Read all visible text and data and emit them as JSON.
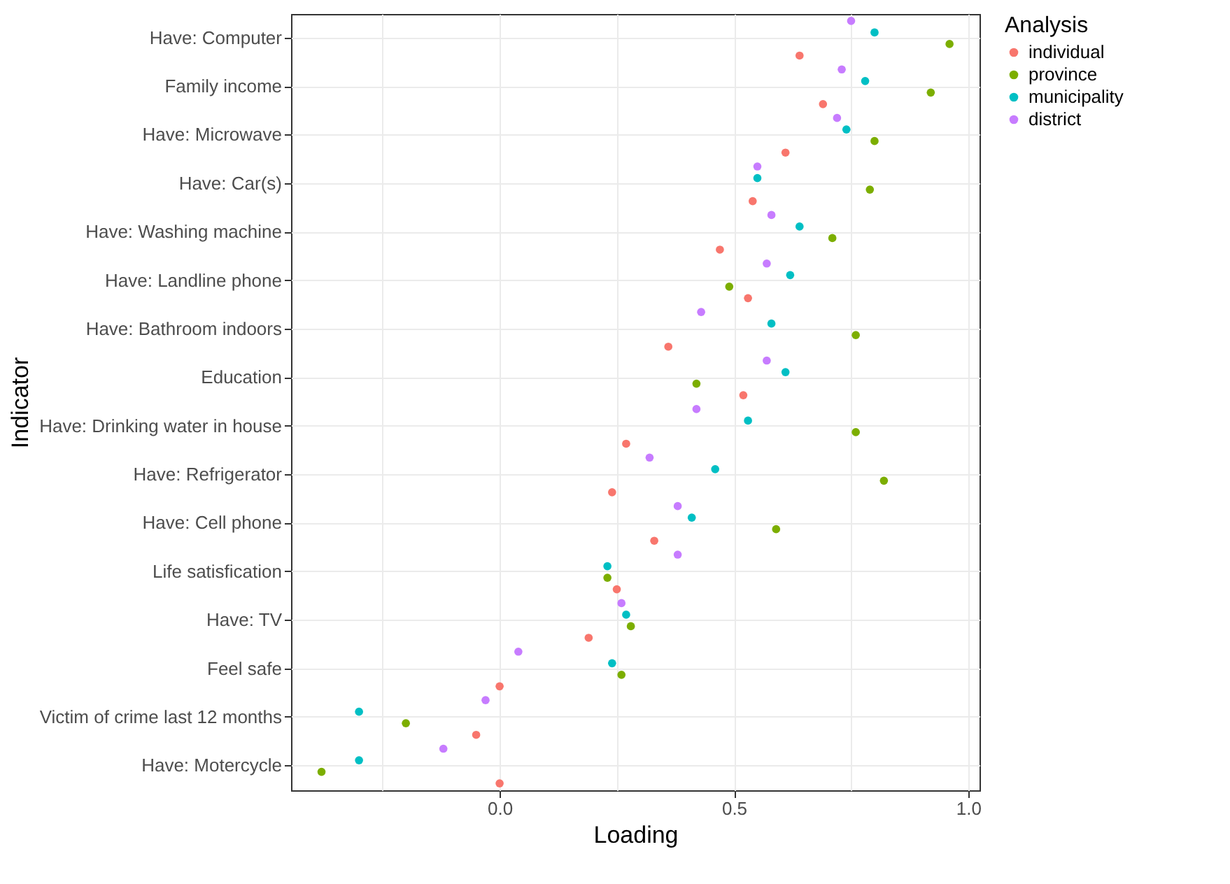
{
  "chart_data": {
    "type": "scatter",
    "orientation": "horizontal",
    "xlabel": "Loading",
    "ylabel": "Indicator",
    "legend_title": "Analysis",
    "legend": "right",
    "grid": true,
    "marker": "circle",
    "categories": [
      "Have: Computer",
      "Family income",
      "Have: Microwave",
      "Have: Car(s)",
      "Have: Washing machine",
      "Have: Landline phone",
      "Have: Bathroom indoors",
      "Education",
      "Have: Drinking water in house",
      "Have: Refrigerator",
      "Have: Cell phone",
      "Life satisfication",
      "Have: TV",
      "Feel safe",
      "Victim of crime last 12 months",
      "Have: Motercycle"
    ],
    "xlim": [
      -0.445,
      1.024
    ],
    "xticks": [
      {
        "value": -0.25,
        "label": null
      },
      {
        "value": 0,
        "label": "0.0"
      },
      {
        "value": 0.25,
        "label": null
      },
      {
        "value": 0.5,
        "label": "0.5"
      },
      {
        "value": 0.75,
        "label": null
      },
      {
        "value": 1,
        "label": "1.0"
      }
    ],
    "series": [
      {
        "name": "individual",
        "color": "#f8766d",
        "values": [
          0.64,
          0.69,
          0.61,
          0.54,
          0.47,
          0.53,
          0.36,
          0.52,
          0.27,
          0.24,
          0.33,
          0.25,
          0.19,
          0.0,
          -0.05,
          0.0
        ]
      },
      {
        "name": "province",
        "color": "#7cae00",
        "values": [
          0.96,
          0.92,
          0.8,
          0.79,
          0.71,
          0.49,
          0.76,
          0.42,
          0.76,
          0.82,
          0.59,
          0.23,
          0.28,
          0.26,
          -0.2,
          -0.38
        ]
      },
      {
        "name": "municipality",
        "color": "#00bfc4",
        "values": [
          0.8,
          0.78,
          0.74,
          0.55,
          0.64,
          0.62,
          0.58,
          0.61,
          0.53,
          0.46,
          0.41,
          0.23,
          0.27,
          0.24,
          -0.3,
          -0.3
        ]
      },
      {
        "name": "district",
        "color": "#c77cff",
        "values": [
          0.75,
          0.73,
          0.72,
          0.55,
          0.58,
          0.57,
          0.43,
          0.57,
          0.42,
          0.32,
          0.38,
          0.38,
          0.26,
          0.04,
          -0.03,
          -0.12
        ]
      }
    ]
  }
}
